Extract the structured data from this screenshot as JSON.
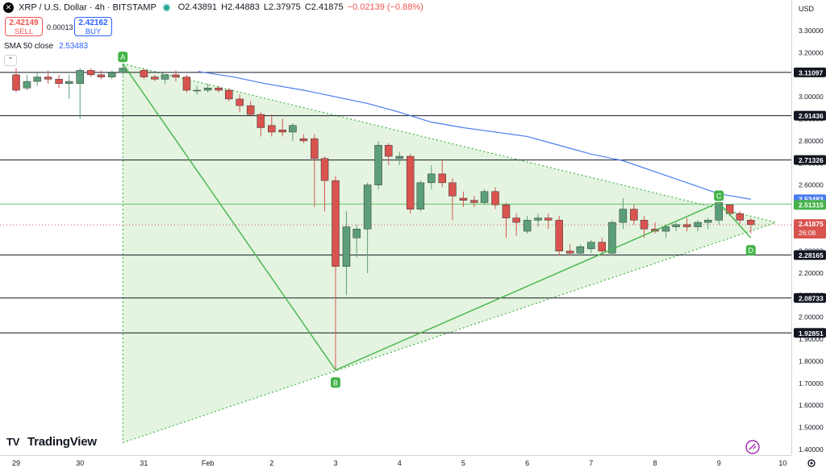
{
  "header": {
    "symbol_icon": "x-logo-icon",
    "title": "XRP / U.S. Dollar · 4h · BITSTAMP",
    "ohlc": {
      "open": "O2.43891",
      "high": "H2.44883",
      "low": "L2.37975",
      "close": "C2.41875",
      "change": "−0.02139 (−0.88%)"
    },
    "market_status_color": "#26a69a"
  },
  "trade": {
    "sell_price": "2.42149",
    "sell_label": "SELL",
    "spread": "0.00013",
    "buy_price": "2.42162",
    "buy_label": "BUY"
  },
  "indicator": {
    "label": "SMA 50 close",
    "value": "2.53483",
    "color": "#4c7cf0"
  },
  "currency": "USD",
  "logo": "TradingView",
  "colors": {
    "up": "#5c9e7a",
    "down": "#d9534f",
    "pattern": "#44b449",
    "fill": "#dff2da",
    "hline": "#131722"
  },
  "chart_data": {
    "type": "candlestick",
    "title": "XRP / U.S. Dollar · 4h · BITSTAMP",
    "yrange": [
      1.4,
      3.35
    ],
    "y_ticks": [
      "3.30000",
      "3.20000",
      "3.00000",
      "2.90000",
      "2.80000",
      "2.70000",
      "2.60000",
      "2.50000",
      "2.40000",
      "2.30000",
      "2.20000",
      "2.10000",
      "2.00000",
      "1.90000",
      "1.80000",
      "1.70000",
      "1.60000",
      "1.50000",
      "1.40000"
    ],
    "x_labels": [
      {
        "label": "29",
        "t": 0
      },
      {
        "label": "30",
        "t": 1
      },
      {
        "label": "31",
        "t": 2
      },
      {
        "label": "Feb",
        "t": 3
      },
      {
        "label": "2",
        "t": 4
      },
      {
        "label": "3",
        "t": 5
      },
      {
        "label": "4",
        "t": 6
      },
      {
        "label": "5",
        "t": 7
      },
      {
        "label": "6",
        "t": 8
      },
      {
        "label": "7",
        "t": 9
      },
      {
        "label": "8",
        "t": 10
      },
      {
        "label": "9",
        "t": 11
      },
      {
        "label": "10",
        "t": 12
      }
    ],
    "horizontal_levels": [
      {
        "value": 3.11097,
        "label": "3.11097"
      },
      {
        "value": 2.91436,
        "label": "2.91436"
      },
      {
        "value": 2.71326,
        "label": "2.71326"
      },
      {
        "value": 2.28165,
        "label": "2.28165"
      },
      {
        "value": 2.08733,
        "label": "2.08733"
      },
      {
        "value": 1.92851,
        "label": "1.92851"
      }
    ],
    "green_level": {
      "value": 2.51315,
      "label": "2.51315"
    },
    "price_badges": [
      {
        "value": 2.53483,
        "label": "2.53483",
        "color": "#4c7cf0"
      },
      {
        "value": 2.51315,
        "label": "2.51315",
        "color": "#44b449"
      },
      {
        "value": 2.41875,
        "label": "2.41875",
        "countdown": "26:08",
        "color": "#d9534f"
      }
    ],
    "triangle": {
      "top_t": 1.67,
      "top_v": 3.15,
      "bottom_t": 1.67,
      "bottom_v": 1.43,
      "apex_t": 11.9,
      "apex_v": 2.43
    },
    "abcd": [
      {
        "label": "A",
        "t": 1.67,
        "v": 3.15
      },
      {
        "label": "B",
        "t": 5.0,
        "v": 1.76
      },
      {
        "label": "C",
        "t": 11.0,
        "v": 2.52
      },
      {
        "label": "D",
        "t": 11.5,
        "v": 2.36
      }
    ],
    "sma": [
      [
        2.85,
        3.115
      ],
      [
        3.4,
        3.09
      ],
      [
        3.9,
        3.06
      ],
      [
        4.5,
        3.03
      ],
      [
        5,
        3.0
      ],
      [
        5.5,
        2.97
      ],
      [
        6,
        2.93
      ],
      [
        6.5,
        2.885
      ],
      [
        7,
        2.86
      ],
      [
        7.5,
        2.84
      ],
      [
        8,
        2.82
      ],
      [
        8.5,
        2.78
      ],
      [
        9,
        2.74
      ],
      [
        9.5,
        2.71
      ],
      [
        10,
        2.66
      ],
      [
        10.5,
        2.61
      ],
      [
        11,
        2.56
      ],
      [
        11.5,
        2.535
      ]
    ],
    "candles": [
      {
        "t": 0.0,
        "o": 3.1,
        "h": 3.13,
        "l": 3.02,
        "c": 3.03
      },
      {
        "t": 0.17,
        "o": 3.04,
        "h": 3.1,
        "l": 3.03,
        "c": 3.07
      },
      {
        "t": 0.33,
        "o": 3.07,
        "h": 3.11,
        "l": 3.05,
        "c": 3.09
      },
      {
        "t": 0.5,
        "o": 3.09,
        "h": 3.12,
        "l": 3.06,
        "c": 3.08
      },
      {
        "t": 0.67,
        "o": 3.08,
        "h": 3.1,
        "l": 3.04,
        "c": 3.06
      },
      {
        "t": 0.83,
        "o": 3.06,
        "h": 3.1,
        "l": 2.99,
        "c": 3.07
      },
      {
        "t": 1.0,
        "o": 3.06,
        "h": 3.13,
        "l": 2.9,
        "c": 3.12
      },
      {
        "t": 1.17,
        "o": 3.12,
        "h": 3.13,
        "l": 3.09,
        "c": 3.1
      },
      {
        "t": 1.33,
        "o": 3.1,
        "h": 3.12,
        "l": 3.08,
        "c": 3.09
      },
      {
        "t": 1.5,
        "o": 3.09,
        "h": 3.12,
        "l": 3.08,
        "c": 3.11
      },
      {
        "t": 1.67,
        "o": 3.11,
        "h": 3.15,
        "l": 3.1,
        "c": 3.13
      },
      {
        "t": 2.0,
        "o": 3.12,
        "h": 3.13,
        "l": 3.08,
        "c": 3.09
      },
      {
        "t": 2.17,
        "o": 3.09,
        "h": 3.1,
        "l": 3.07,
        "c": 3.08
      },
      {
        "t": 2.33,
        "o": 3.08,
        "h": 3.1,
        "l": 3.06,
        "c": 3.1
      },
      {
        "t": 2.5,
        "o": 3.1,
        "h": 3.12,
        "l": 3.07,
        "c": 3.09
      },
      {
        "t": 2.67,
        "o": 3.09,
        "h": 3.1,
        "l": 3.02,
        "c": 3.03
      },
      {
        "t": 2.83,
        "o": 3.03,
        "h": 3.05,
        "l": 3.01,
        "c": 3.03
      },
      {
        "t": 3.0,
        "o": 3.03,
        "h": 3.06,
        "l": 3.02,
        "c": 3.04
      },
      {
        "t": 3.17,
        "o": 3.04,
        "h": 3.05,
        "l": 3.02,
        "c": 3.03
      },
      {
        "t": 3.33,
        "o": 3.03,
        "h": 3.04,
        "l": 2.98,
        "c": 2.99
      },
      {
        "t": 3.5,
        "o": 2.99,
        "h": 3.01,
        "l": 2.93,
        "c": 2.96
      },
      {
        "t": 3.67,
        "o": 2.96,
        "h": 2.98,
        "l": 2.91,
        "c": 2.92
      },
      {
        "t": 3.83,
        "o": 2.92,
        "h": 2.93,
        "l": 2.82,
        "c": 2.86
      },
      {
        "t": 4.0,
        "o": 2.87,
        "h": 2.92,
        "l": 2.82,
        "c": 2.84
      },
      {
        "t": 4.17,
        "o": 2.85,
        "h": 2.9,
        "l": 2.82,
        "c": 2.84
      },
      {
        "t": 4.33,
        "o": 2.84,
        "h": 2.88,
        "l": 2.8,
        "c": 2.87
      },
      {
        "t": 4.5,
        "o": 2.81,
        "h": 2.83,
        "l": 2.79,
        "c": 2.8
      },
      {
        "t": 4.67,
        "o": 2.81,
        "h": 2.83,
        "l": 2.5,
        "c": 2.72
      },
      {
        "t": 4.83,
        "o": 2.72,
        "h": 2.73,
        "l": 2.48,
        "c": 2.62
      },
      {
        "t": 5.0,
        "o": 2.62,
        "h": 2.64,
        "l": 1.76,
        "c": 2.23
      },
      {
        "t": 5.17,
        "o": 2.23,
        "h": 2.48,
        "l": 2.1,
        "c": 2.41
      },
      {
        "t": 5.33,
        "o": 2.36,
        "h": 2.42,
        "l": 2.27,
        "c": 2.4
      },
      {
        "t": 5.5,
        "o": 2.4,
        "h": 2.61,
        "l": 2.2,
        "c": 2.6
      },
      {
        "t": 5.67,
        "o": 2.6,
        "h": 2.8,
        "l": 2.58,
        "c": 2.78
      },
      {
        "t": 5.83,
        "o": 2.78,
        "h": 2.79,
        "l": 2.69,
        "c": 2.73
      },
      {
        "t": 6.0,
        "o": 2.72,
        "h": 2.75,
        "l": 2.69,
        "c": 2.73
      },
      {
        "t": 6.17,
        "o": 2.73,
        "h": 2.74,
        "l": 2.47,
        "c": 2.49
      },
      {
        "t": 6.33,
        "o": 2.49,
        "h": 2.62,
        "l": 2.48,
        "c": 2.61
      },
      {
        "t": 6.5,
        "o": 2.61,
        "h": 2.69,
        "l": 2.58,
        "c": 2.65
      },
      {
        "t": 6.67,
        "o": 2.65,
        "h": 2.71,
        "l": 2.59,
        "c": 2.61
      },
      {
        "t": 6.83,
        "o": 2.61,
        "h": 2.63,
        "l": 2.44,
        "c": 2.55
      },
      {
        "t": 7.0,
        "o": 2.54,
        "h": 2.57,
        "l": 2.5,
        "c": 2.53
      },
      {
        "t": 7.17,
        "o": 2.53,
        "h": 2.55,
        "l": 2.5,
        "c": 2.52
      },
      {
        "t": 7.33,
        "o": 2.52,
        "h": 2.58,
        "l": 2.51,
        "c": 2.57
      },
      {
        "t": 7.5,
        "o": 2.57,
        "h": 2.59,
        "l": 2.49,
        "c": 2.51
      },
      {
        "t": 7.67,
        "o": 2.51,
        "h": 2.52,
        "l": 2.36,
        "c": 2.45
      },
      {
        "t": 7.83,
        "o": 2.45,
        "h": 2.47,
        "l": 2.37,
        "c": 2.43
      },
      {
        "t": 8.0,
        "o": 2.39,
        "h": 2.46,
        "l": 2.38,
        "c": 2.44
      },
      {
        "t": 8.17,
        "o": 2.44,
        "h": 2.47,
        "l": 2.41,
        "c": 2.45
      },
      {
        "t": 8.33,
        "o": 2.45,
        "h": 2.47,
        "l": 2.4,
        "c": 2.44
      },
      {
        "t": 8.5,
        "o": 2.44,
        "h": 2.46,
        "l": 2.28,
        "c": 2.3
      },
      {
        "t": 8.67,
        "o": 2.3,
        "h": 2.33,
        "l": 2.28,
        "c": 2.29
      },
      {
        "t": 8.83,
        "o": 2.29,
        "h": 2.33,
        "l": 2.28,
        "c": 2.32
      },
      {
        "t": 9.0,
        "o": 2.31,
        "h": 2.35,
        "l": 2.29,
        "c": 2.34
      },
      {
        "t": 9.17,
        "o": 2.34,
        "h": 2.36,
        "l": 2.28,
        "c": 2.3
      },
      {
        "t": 9.33,
        "o": 2.29,
        "h": 2.44,
        "l": 2.28,
        "c": 2.43
      },
      {
        "t": 9.5,
        "o": 2.43,
        "h": 2.54,
        "l": 2.4,
        "c": 2.49
      },
      {
        "t": 9.67,
        "o": 2.49,
        "h": 2.51,
        "l": 2.42,
        "c": 2.44
      },
      {
        "t": 9.83,
        "o": 2.44,
        "h": 2.46,
        "l": 2.36,
        "c": 2.4
      },
      {
        "t": 10.0,
        "o": 2.4,
        "h": 2.43,
        "l": 2.38,
        "c": 2.39
      },
      {
        "t": 10.17,
        "o": 2.39,
        "h": 2.42,
        "l": 2.36,
        "c": 2.41
      },
      {
        "t": 10.33,
        "o": 2.41,
        "h": 2.43,
        "l": 2.39,
        "c": 2.42
      },
      {
        "t": 10.5,
        "o": 2.42,
        "h": 2.45,
        "l": 2.39,
        "c": 2.41
      },
      {
        "t": 10.67,
        "o": 2.41,
        "h": 2.44,
        "l": 2.39,
        "c": 2.43
      },
      {
        "t": 10.83,
        "o": 2.43,
        "h": 2.45,
        "l": 2.4,
        "c": 2.44
      },
      {
        "t": 11.0,
        "o": 2.44,
        "h": 2.52,
        "l": 2.42,
        "c": 2.52
      },
      {
        "t": 11.17,
        "o": 2.51,
        "h": 2.51,
        "l": 2.46,
        "c": 2.47
      },
      {
        "t": 11.33,
        "o": 2.47,
        "h": 2.48,
        "l": 2.42,
        "c": 2.44
      },
      {
        "t": 11.5,
        "o": 2.44,
        "h": 2.45,
        "l": 2.38,
        "c": 2.42
      }
    ]
  }
}
